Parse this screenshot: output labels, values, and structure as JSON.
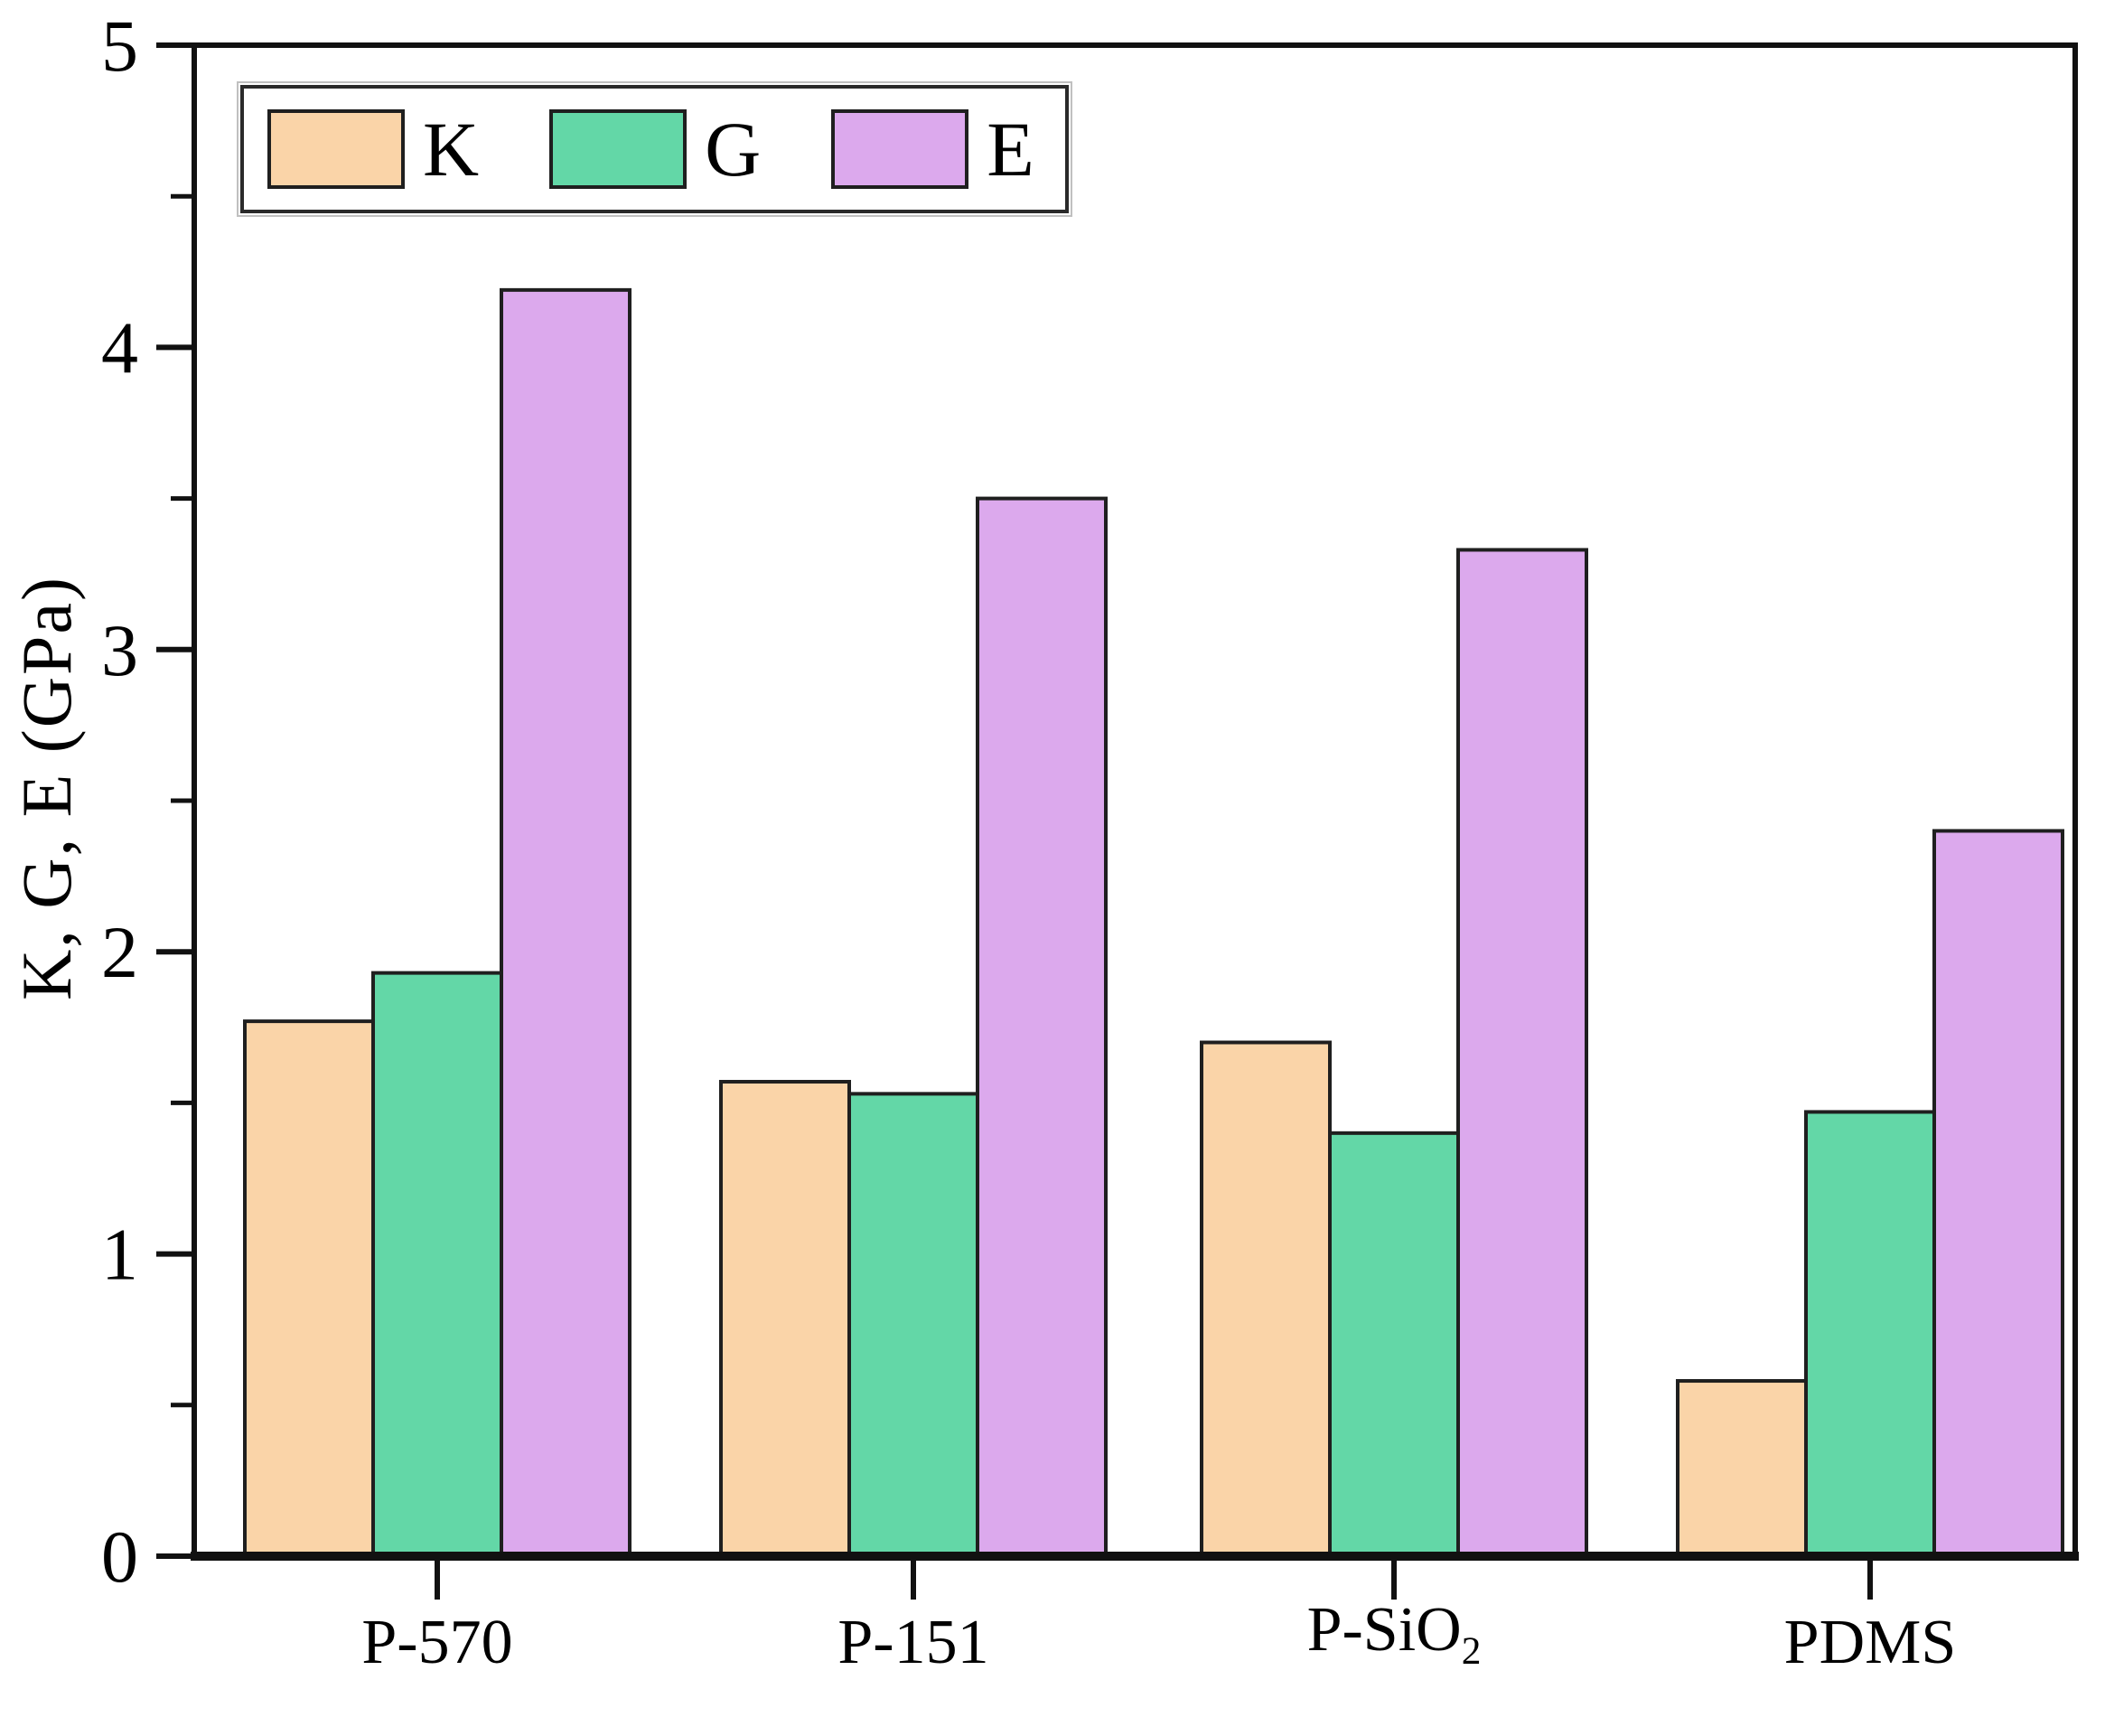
{
  "chart_data": {
    "type": "bar",
    "title": "",
    "ylabel": "K, G, E (GPa)",
    "ylim": [
      0,
      5
    ],
    "ytick_step": 1,
    "yminor_step": 0.5,
    "ytick_labels": [
      "0",
      "1",
      "2",
      "3",
      "4",
      "5"
    ],
    "grid": false,
    "legend_position": "top-left",
    "bar_edge_color": "#1f1f1f",
    "categories": [
      "P-570",
      "P-151",
      "P-SiO2",
      "PDMS"
    ],
    "categories_rich": [
      {
        "label": "P-570",
        "sub": ""
      },
      {
        "label": "P-151",
        "sub": ""
      },
      {
        "label": "P-SiO",
        "sub": "2"
      },
      {
        "label": "PDMS",
        "sub": ""
      }
    ],
    "series": [
      {
        "name": "K",
        "color": "#FAD4A8",
        "values": [
          1.77,
          1.57,
          1.7,
          0.58
        ]
      },
      {
        "name": "G",
        "color": "#63D7A7",
        "values": [
          1.93,
          1.53,
          1.4,
          1.47
        ]
      },
      {
        "name": "E",
        "color": "#DCA9ED",
        "values": [
          4.19,
          3.5,
          3.33,
          2.4
        ]
      }
    ]
  }
}
